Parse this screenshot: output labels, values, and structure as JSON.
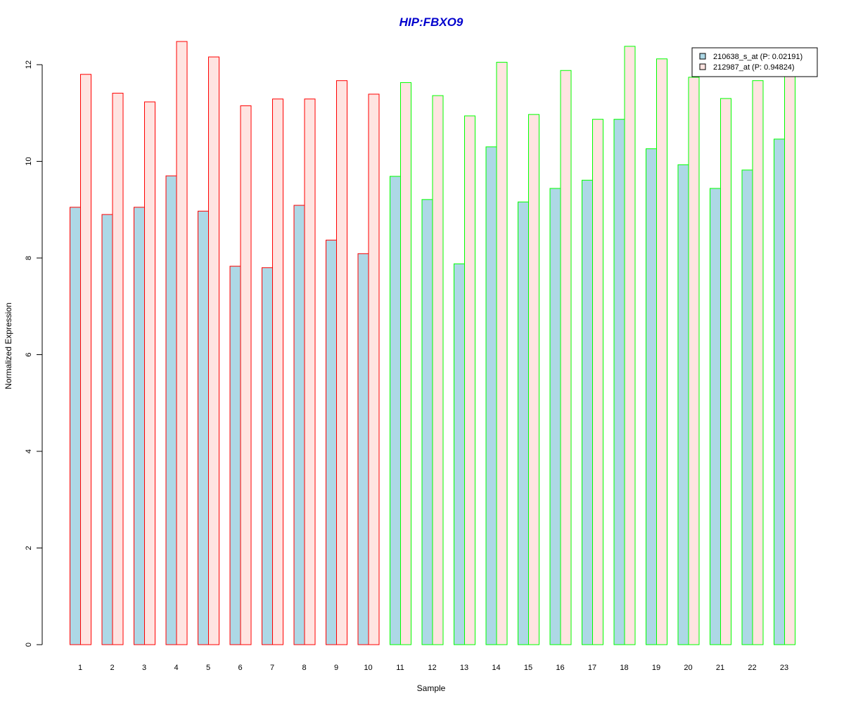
{
  "chart_data": {
    "type": "bar",
    "title": "HIP:FBXO9",
    "xlabel": "Sample",
    "ylabel": "Normalized Expression",
    "ylim": [
      0,
      12.5
    ],
    "yticks": [
      0,
      2,
      4,
      6,
      8,
      10,
      12
    ],
    "grid": false,
    "legend_position": "top-right",
    "categories": [
      "1",
      "2",
      "3",
      "4",
      "5",
      "6",
      "7",
      "8",
      "9",
      "10",
      "11",
      "12",
      "13",
      "14",
      "15",
      "16",
      "17",
      "18",
      "19",
      "20",
      "21",
      "22",
      "23"
    ],
    "series": [
      {
        "name": "210638_s_at (P: 0.02191)",
        "fill": "#add8e6",
        "values": [
          9.05,
          8.9,
          9.05,
          9.7,
          8.97,
          7.83,
          7.8,
          9.09,
          8.37,
          8.09,
          9.69,
          9.21,
          7.88,
          10.3,
          9.16,
          9.44,
          9.61,
          10.87,
          10.26,
          9.93,
          9.44,
          9.82,
          10.46
        ]
      },
      {
        "name": "212987_at (P: 0.94824)",
        "fill": "#ffe4e1",
        "values": [
          11.8,
          11.41,
          11.23,
          12.48,
          12.16,
          11.15,
          11.29,
          11.29,
          11.67,
          11.39,
          11.63,
          11.36,
          10.94,
          12.05,
          10.97,
          11.88,
          10.87,
          12.38,
          12.12,
          11.74,
          11.3,
          11.67,
          11.78
        ]
      }
    ],
    "group_outline_colors": [
      "#ff0000",
      "#ff0000",
      "#ff0000",
      "#ff0000",
      "#ff0000",
      "#ff0000",
      "#ff0000",
      "#ff0000",
      "#ff0000",
      "#ff0000",
      "#00ff00",
      "#00ff00",
      "#00ff00",
      "#00ff00",
      "#00ff00",
      "#00ff00",
      "#00ff00",
      "#00ff00",
      "#00ff00",
      "#00ff00",
      "#00ff00",
      "#00ff00",
      "#00ff00"
    ],
    "title_color": "#0000cd"
  }
}
